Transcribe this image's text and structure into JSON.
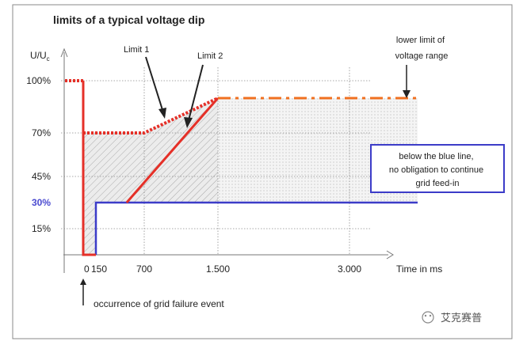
{
  "chart_data": {
    "type": "line",
    "title": "limits of a typical voltage dip",
    "ylabel_main": "U/U",
    "ylabel_sub": "c",
    "xlabel": "Time in ms",
    "x_ticks": [
      {
        "label": "0",
        "value": 0
      },
      {
        "label": "150",
        "value": 150
      },
      {
        "label": "700",
        "value": 700
      },
      {
        "label": "1.500",
        "value": 1500
      },
      {
        "label": "3.000",
        "value": 3000
      }
    ],
    "y_ticks": [
      {
        "label": "100%",
        "value": 100
      },
      {
        "label": "70%",
        "value": 70
      },
      {
        "label": "45%",
        "value": 45
      },
      {
        "label": "30%",
        "value": 30,
        "highlight": true
      },
      {
        "label": "15%",
        "value": 15
      }
    ],
    "series": [
      {
        "name": "Limit 1",
        "style": "dotted",
        "color": "#e53028",
        "points": [
          [
            -200,
            100
          ],
          [
            0,
            100
          ],
          [
            0,
            70
          ],
          [
            700,
            70
          ],
          [
            1500,
            90
          ],
          [
            3900,
            90
          ]
        ]
      },
      {
        "name": "Limit 2",
        "style": "solid",
        "color": "#e53028",
        "points": [
          [
            0,
            100
          ],
          [
            0,
            0
          ],
          [
            150,
            0
          ],
          [
            150,
            30
          ],
          [
            500,
            30
          ],
          [
            1500,
            90
          ]
        ]
      },
      {
        "name": "lower limit of voltage range",
        "style": "dashdot",
        "color": "#f07020",
        "points": [
          [
            1500,
            90
          ],
          [
            3900,
            90
          ]
        ]
      },
      {
        "name": "blue line",
        "style": "solid",
        "color": "#3c3cc8",
        "points": [
          [
            150,
            0
          ],
          [
            150,
            30
          ],
          [
            3900,
            30
          ]
        ]
      }
    ],
    "annotations": {
      "limit1": "Limit 1",
      "limit2": "Limit 2",
      "lower_limit": [
        "lower limit of",
        "voltage range"
      ],
      "blue_box": [
        "below the blue line,",
        "no obligation to continue",
        "grid feed-in"
      ],
      "event": "occurrence of grid failure event"
    },
    "colors": {
      "red": "#e53028",
      "orange": "#f07020",
      "blue": "#3c3cc8",
      "highlight_30": "#4a4ad0",
      "grid": "#8c8c8c"
    },
    "grid": true,
    "watermark": "艾克赛普"
  }
}
